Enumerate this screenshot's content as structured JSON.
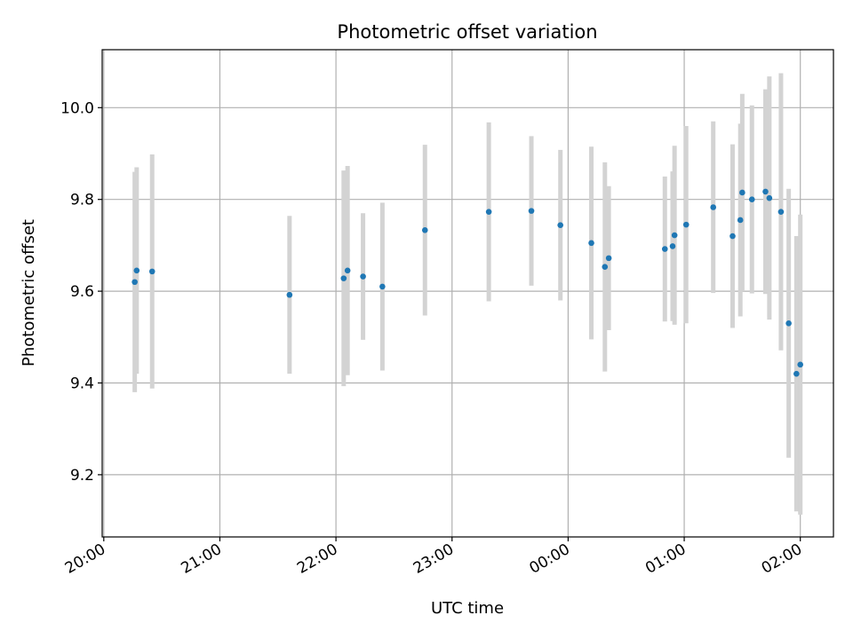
{
  "chart_data": {
    "type": "scatter",
    "title": "Photometric offset variation",
    "xlabel": "UTC time",
    "ylabel": "Photometric offset",
    "x_tick_labels": [
      "20:00",
      "21:00",
      "22:00",
      "23:00",
      "00:00",
      "01:00",
      "02:00"
    ],
    "y_tick_labels": [
      "9.2",
      "9.4",
      "9.6",
      "9.8",
      "10.0"
    ],
    "y_ticks": [
      9.2,
      9.4,
      9.6,
      9.8,
      10.0
    ],
    "xlim": [
      "20:00",
      "02:00"
    ],
    "ylim": [
      9.07,
      10.13
    ],
    "grid": true,
    "colors": {
      "point": "#1f77b4",
      "errorbar": "#d3d3d3",
      "grid": "#b0b0b0"
    },
    "points": [
      {
        "time": "20:16",
        "y": 9.62,
        "err": 0.24
      },
      {
        "time": "20:17",
        "y": 9.645,
        "err": 0.225
      },
      {
        "time": "20:25",
        "y": 9.643,
        "err": 0.255
      },
      {
        "time": "21:36",
        "y": 9.592,
        "err": 0.172
      },
      {
        "time": "22:04",
        "y": 9.628,
        "err": 0.235
      },
      {
        "time": "22:06",
        "y": 9.645,
        "err": 0.228
      },
      {
        "time": "22:14",
        "y": 9.632,
        "err": 0.138
      },
      {
        "time": "22:24",
        "y": 9.61,
        "err": 0.183
      },
      {
        "time": "22:46",
        "y": 9.733,
        "err": 0.186
      },
      {
        "time": "23:19",
        "y": 9.773,
        "err": 0.195
      },
      {
        "time": "23:41",
        "y": 9.775,
        "err": 0.163
      },
      {
        "time": "23:56",
        "y": 9.744,
        "err": 0.164
      },
      {
        "time": "00:12",
        "y": 9.705,
        "err": 0.21
      },
      {
        "time": "00:19",
        "y": 9.653,
        "err": 0.228
      },
      {
        "time": "00:21",
        "y": 9.672,
        "err": 0.157
      },
      {
        "time": "00:50",
        "y": 9.692,
        "err": 0.158
      },
      {
        "time": "00:54",
        "y": 9.698,
        "err": 0.163
      },
      {
        "time": "00:55",
        "y": 9.722,
        "err": 0.195
      },
      {
        "time": "01:01",
        "y": 9.745,
        "err": 0.215
      },
      {
        "time": "01:15",
        "y": 9.783,
        "err": 0.187
      },
      {
        "time": "01:25",
        "y": 9.72,
        "err": 0.2
      },
      {
        "time": "01:29",
        "y": 9.755,
        "err": 0.21
      },
      {
        "time": "01:30",
        "y": 9.815,
        "err": 0.215
      },
      {
        "time": "01:35",
        "y": 9.8,
        "err": 0.205
      },
      {
        "time": "01:42",
        "y": 9.817,
        "err": 0.223
      },
      {
        "time": "01:44",
        "y": 9.803,
        "err": 0.265
      },
      {
        "time": "01:50",
        "y": 9.773,
        "err": 0.302
      },
      {
        "time": "01:54",
        "y": 9.53,
        "err": 0.293
      },
      {
        "time": "01:58",
        "y": 9.42,
        "err": 0.3
      },
      {
        "time": "02:00",
        "y": 9.44,
        "err": 0.327
      }
    ]
  }
}
